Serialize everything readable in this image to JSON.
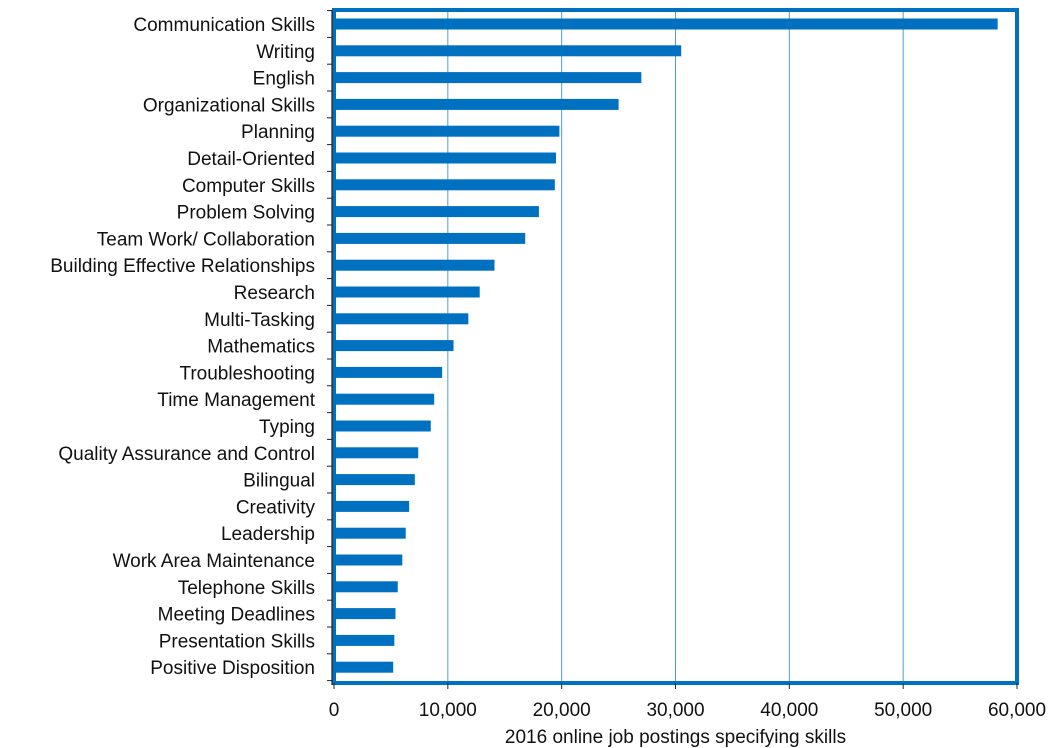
{
  "chart_data": {
    "type": "bar",
    "orientation": "horizontal",
    "title": "",
    "xlabel": "2016 online job postings specifying skills",
    "ylabel": "",
    "xlim": [
      0,
      60000
    ],
    "x_ticks": [
      0,
      10000,
      20000,
      30000,
      40000,
      50000,
      60000
    ],
    "x_tick_labels": [
      "0",
      "10,000",
      "20,000",
      "30,000",
      "40,000",
      "50,000",
      "60,000"
    ],
    "grid": "vertical",
    "legend": "none",
    "colors": {
      "bar": "#0070C0",
      "frame": "#0070C0",
      "grid": "#4A9FD8"
    },
    "categories": [
      "Communication Skills",
      "Writing",
      "English",
      "Organizational Skills",
      "Planning",
      "Detail-Oriented",
      "Computer Skills",
      "Problem Solving",
      "Team Work/ Collaboration",
      "Building Effective Relationships",
      "Research",
      "Multi-Tasking",
      "Mathematics",
      "Troubleshooting",
      "Time Management",
      "Typing",
      "Quality Assurance and Control",
      "Bilingual",
      "Creativity",
      "Leadership",
      "Work Area Maintenance",
      "Telephone Skills",
      "Meeting Deadlines",
      "Presentation Skills",
      "Positive Disposition"
    ],
    "values": [
      58300,
      30500,
      27000,
      25000,
      19800,
      19500,
      19400,
      18000,
      16800,
      14100,
      12800,
      11800,
      10500,
      9500,
      8800,
      8500,
      7400,
      7100,
      6600,
      6300,
      6000,
      5600,
      5400,
      5300,
      5200
    ]
  }
}
